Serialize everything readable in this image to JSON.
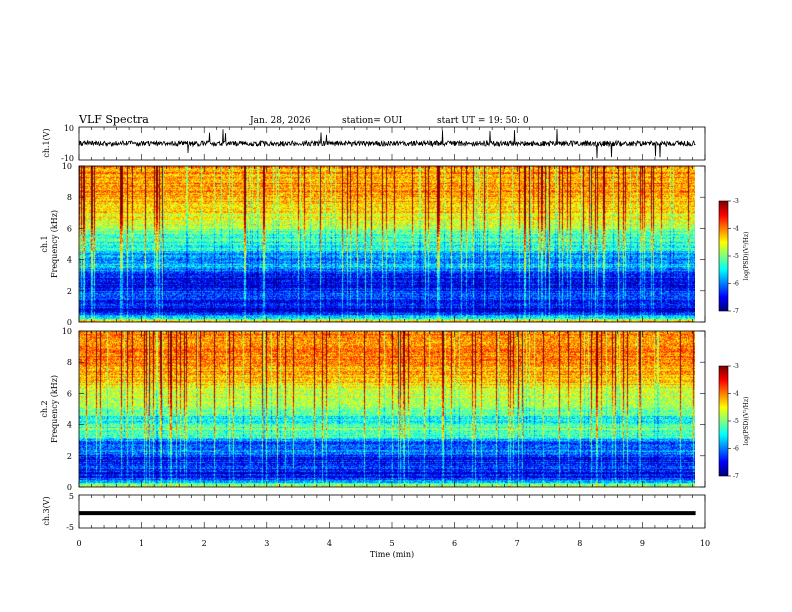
{
  "header": {
    "title": "VLF Spectra",
    "date": "Jan. 28, 2026",
    "station": "station= OUI",
    "start": "start  UT =   19: 50: 0"
  },
  "chart_data": [
    {
      "type": "line",
      "name": "ch.1 waveform",
      "ylabel": "ch.1(V)",
      "ylim": [
        -10,
        10
      ],
      "ytick_labels": [
        "10",
        "-10"
      ],
      "xlim": [
        0,
        10
      ],
      "note": "dense noise waveform around 0 V with sparse spikes"
    },
    {
      "type": "heatmap",
      "name": "ch.1 spectrogram",
      "ylabel": "ch.1",
      "ylabel2": "Frequency  (kHz)",
      "ylim": [
        0,
        10
      ],
      "ytick_labels": [
        "0",
        "2",
        "4",
        "6",
        "8",
        "10"
      ],
      "xlim": [
        0,
        9.85
      ],
      "colorbar": {
        "label": "log(PSD)(V²/Hz)",
        "range": [
          -7,
          -3
        ],
        "ticks": [
          "-3",
          "-4",
          "-5",
          "-6",
          "-7"
        ]
      },
      "levels_kHz": {
        "freq": [
          0,
          0.3,
          0.7,
          1.2,
          1.8,
          2.3,
          2.8,
          3.2,
          3.6,
          4.0,
          4.8,
          5.5,
          6.5,
          7.5,
          8.5,
          10
        ],
        "level": [
          0.65,
          0.3,
          0.08,
          0.14,
          0.2,
          0.1,
          0.12,
          0.2,
          0.33,
          0.22,
          0.42,
          0.45,
          0.6,
          0.68,
          0.74,
          0.72
        ]
      }
    },
    {
      "type": "heatmap",
      "name": "ch.2 spectrogram",
      "ylabel": "ch.2",
      "ylabel2": "Frequency  (kHz)",
      "ylim": [
        0,
        10
      ],
      "ytick_labels": [
        "0",
        "2",
        "4",
        "6",
        "8",
        "10"
      ],
      "xlim": [
        0,
        9.85
      ],
      "colorbar": {
        "label": "log(PSD)(V²/Hz)",
        "range": [
          -7,
          -3
        ],
        "ticks": [
          "-3",
          "-4",
          "-5",
          "-6",
          "-7"
        ]
      },
      "levels_kHz": {
        "freq": [
          0,
          0.3,
          0.8,
          1.3,
          1.8,
          2.3,
          2.8,
          3.2,
          3.7,
          4.2,
          5.0,
          6.0,
          7.0,
          8.0,
          9.0,
          10
        ],
        "level": [
          0.6,
          0.25,
          0.1,
          0.2,
          0.12,
          0.25,
          0.18,
          0.42,
          0.5,
          0.35,
          0.52,
          0.58,
          0.68,
          0.74,
          0.76,
          0.74
        ]
      }
    },
    {
      "type": "line",
      "name": "ch.3 waveform",
      "ylabel": "ch.3(V)",
      "ylim": [
        -5,
        5
      ],
      "ytick_labels": [
        "5",
        "-5"
      ],
      "xlim": [
        0,
        10
      ],
      "series": [
        {
          "name": "ch.3",
          "x": [
            0,
            9.85
          ],
          "y": [
            -0.5,
            -0.5
          ]
        }
      ]
    }
  ],
  "xaxis": {
    "label": "Time  (min)",
    "ticks": [
      "0",
      "1",
      "2",
      "3",
      "4",
      "5",
      "6",
      "7",
      "8",
      "9",
      "10"
    ],
    "range": [
      0,
      10
    ]
  }
}
